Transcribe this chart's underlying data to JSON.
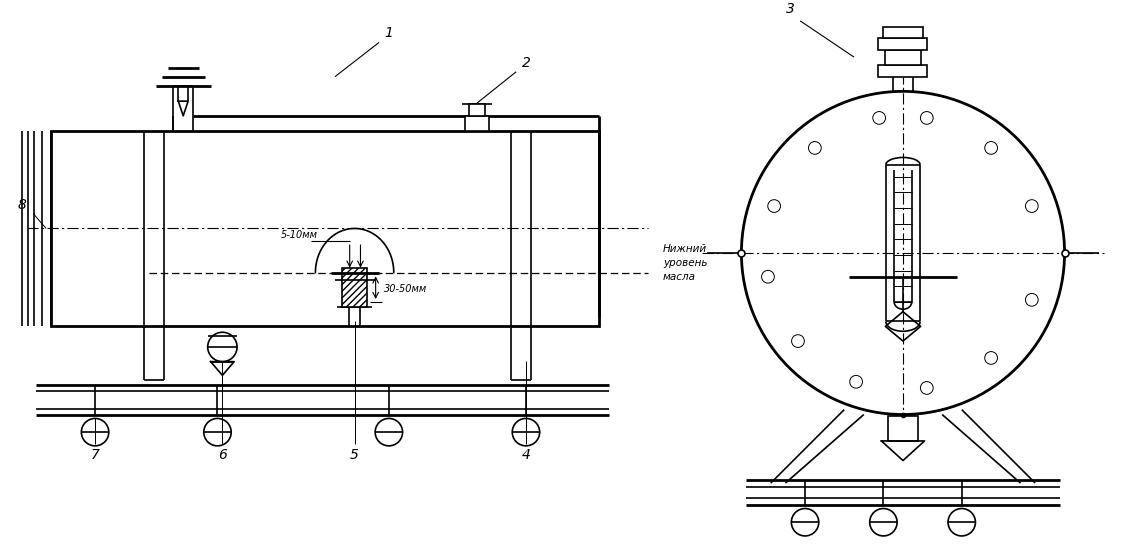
{
  "bg_color": "#ffffff",
  "line_color": "#000000",
  "lw": 1.2,
  "tlw": 2.0,
  "label_1": "1",
  "label_2": "2",
  "label_3": "3",
  "label_4": "4",
  "label_5": "5",
  "label_6": "6",
  "label_7": "7",
  "label_8": "8",
  "text_lower": "Нижний\nуровень\nмасла",
  "dim_5_10": "5-10мм",
  "dim_30_50": "30-50мм"
}
